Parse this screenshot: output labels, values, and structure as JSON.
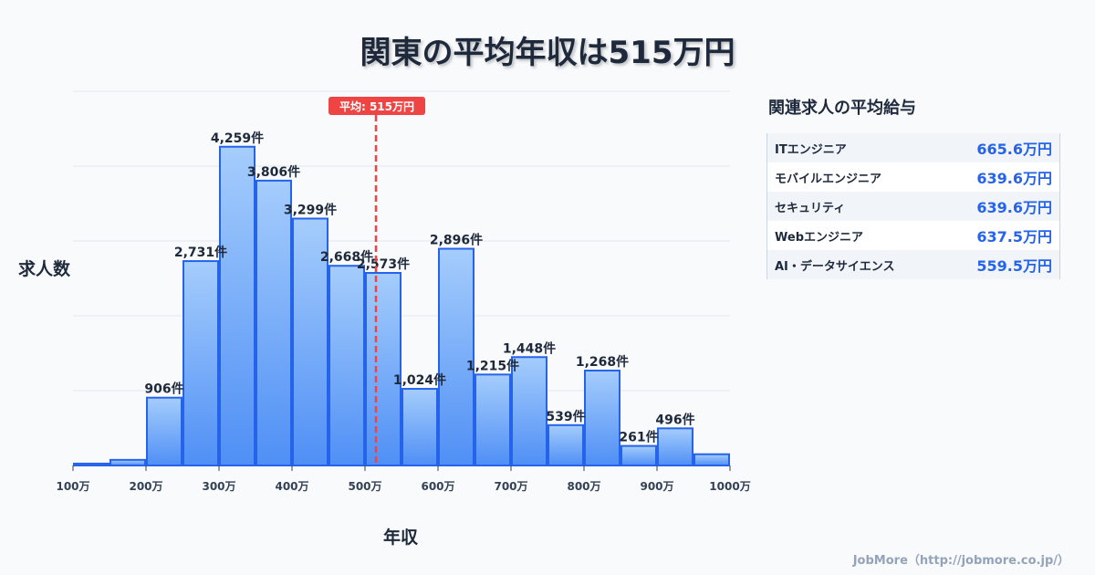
{
  "title": "関東の平均年収は515万円",
  "chart_data": {
    "type": "bar",
    "title": "関東の平均年収は515万円",
    "xlabel": "年収",
    "ylabel": "求人数",
    "bin_width": 50,
    "x_bin_starts": [
      100,
      150,
      200,
      250,
      300,
      350,
      400,
      450,
      500,
      550,
      600,
      650,
      700,
      750,
      800,
      850,
      900,
      950
    ],
    "values": [
      25,
      75,
      906,
      2731,
      4259,
      3806,
      3299,
      2668,
      2573,
      1024,
      2896,
      1215,
      1448,
      539,
      1268,
      261,
      496,
      150
    ],
    "data_labels": [
      "",
      "",
      "906件",
      "2,731件",
      "4,259件",
      "3,806件",
      "3,299件",
      "2,668件",
      "2,573件",
      "1,024件",
      "2,896件",
      "1,215件",
      "1,448件",
      "539件",
      "1,268件",
      "261件",
      "496件",
      ""
    ],
    "xticks": [
      100,
      200,
      300,
      400,
      500,
      600,
      700,
      800,
      900,
      1000
    ],
    "xtick_labels": [
      "100万",
      "200万",
      "300万",
      "400万",
      "500万",
      "600万",
      "700万",
      "800万",
      "900万",
      "1000万"
    ],
    "xlim": [
      100,
      1000
    ],
    "ylim": [
      0,
      5000
    ],
    "grid": true,
    "mean_line": {
      "value": 515,
      "label": "平均: 515万円",
      "color": "#ef4444"
    },
    "bar_color": "#3b82f6"
  },
  "sidebar": {
    "title": "関連求人の平均給与",
    "items": [
      {
        "label": "ITエンジニア",
        "value": "665.6万円"
      },
      {
        "label": "モバイルエンジニア",
        "value": "639.6万円"
      },
      {
        "label": "セキュリティ",
        "value": "639.6万円"
      },
      {
        "label": "Webエンジニア",
        "value": "637.5万円"
      },
      {
        "label": "AI・データサイエンス",
        "value": "559.5万円"
      }
    ]
  },
  "footer": "JobMore（http://jobmore.co.jp/）"
}
